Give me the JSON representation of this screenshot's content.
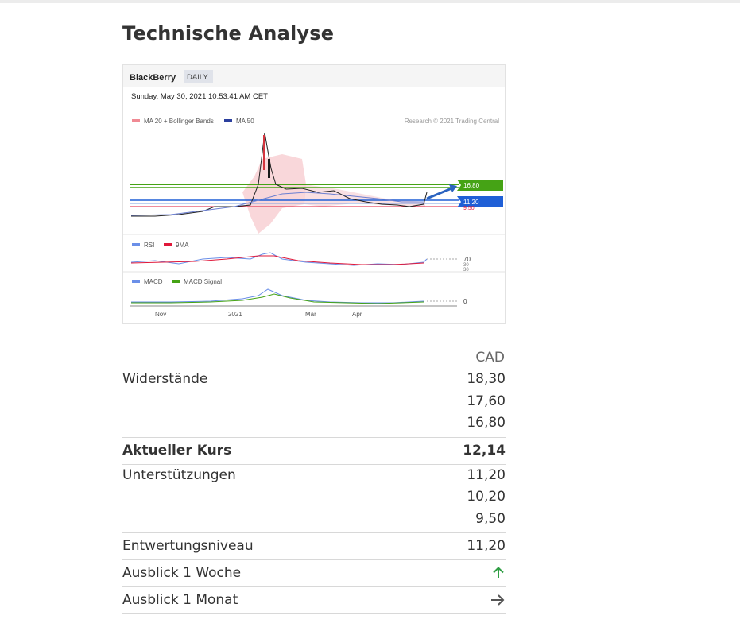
{
  "page": {
    "title": "Technische Analyse"
  },
  "chart_image": {
    "symbol": "BlackBerry",
    "interval_badge": "DAILY",
    "timestamp": "Sunday, May 30, 2021 10:53:41 AM CET",
    "legend_main": [
      "MA 20 + Bollinger Bands",
      "MA 50"
    ],
    "credit": "Research © 2021 Trading Central",
    "price_tags": [
      "16.80",
      "11.20",
      "9.50"
    ],
    "rsi_legend": [
      "RSI",
      "9MA"
    ],
    "rsi_levels": [
      "70",
      "30",
      "30"
    ],
    "macd_legend": [
      "MACD",
      "MACD Signal"
    ],
    "macd_level": "0",
    "x_labels": [
      "Nov",
      "2021",
      "Mar",
      "Apr"
    ],
    "colors": {
      "resistance": "#45a315",
      "support": "#1f5fd6",
      "stop": "#e0183a",
      "bollinger": "#f5b7bd",
      "ma50": "#6b7fd1",
      "rsi": "#6b8fe8",
      "rsi_ma": "#e0183a",
      "macd": "#6b8fe8",
      "macd_signal": "#45a315"
    }
  },
  "levels": {
    "currency": "CAD",
    "resistances_label": "Widerstände",
    "resistances": [
      "18,30",
      "17,60",
      "16,80"
    ],
    "current_label": "Aktueller Kurs",
    "current": "12,14",
    "supports_label": "Unterstützungen",
    "supports": [
      "11,20",
      "10,20",
      "9,50"
    ],
    "invalidation_label": "Entwertungsniveau",
    "invalidation": "11,20",
    "week_label": "Ausblick 1 Woche",
    "week_icon": "arrow-up-icon",
    "month_label": "Ausblick 1 Monat",
    "month_icon": "arrow-right-icon",
    "colors": {
      "up": "#2f9e44",
      "neutral": "#555555"
    }
  }
}
